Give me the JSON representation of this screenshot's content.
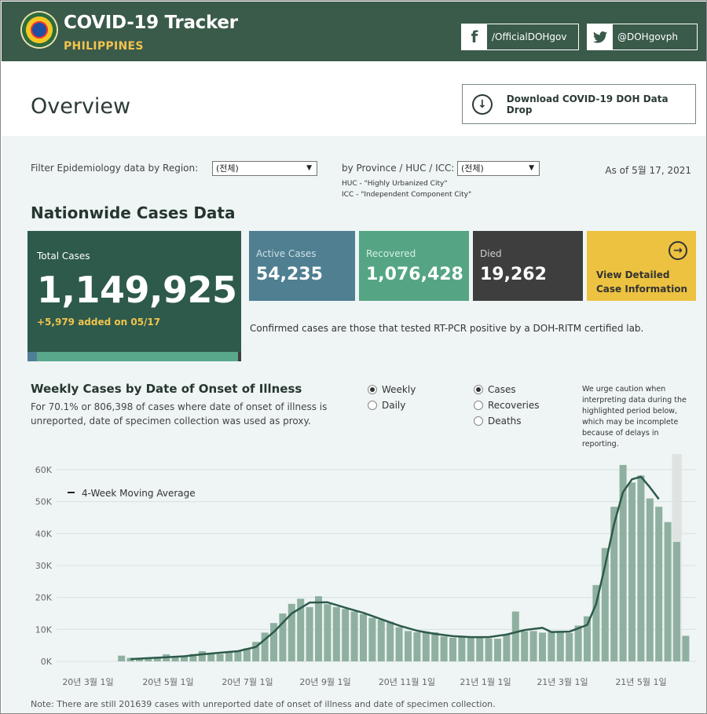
{
  "header": {
    "title": "COVID-19 Tracker",
    "subtitle": "PHILIPPINES",
    "facebook": "/OfficialDOHgov",
    "twitter": "@DOHgovph"
  },
  "overview": {
    "title": "Overview",
    "download_label": "Download COVID-19 DOH Data Drop"
  },
  "filters": {
    "region_label": "Filter Epidemiology data by Region:",
    "region_value": "(전체)",
    "province_label": "by Province / HUC / ICC:",
    "province_value": "(전체)",
    "huc_note": "HUC - \"Highly Urbanized City\"",
    "icc_note": "ICC - \"Independent Component City\"",
    "as_of": "As of 5월 17, 2021"
  },
  "nationwide": {
    "title": "Nationwide Cases Data",
    "total_label": "Total Cases",
    "total_value": "1,149,925",
    "added": "+5,979 added on 05/17",
    "active_label": "Active Cases",
    "active_value": "54,235",
    "recovered_label": "Recovered",
    "recovered_value": "1,076,428",
    "died_label": "Died",
    "died_value": "19,262",
    "view_label_1": "View Detailed",
    "view_label_2": "Case Information",
    "confirmed_note": "Confirmed cases are those that tested RT-PCR positive by a DOH-RITM certified lab."
  },
  "weekly": {
    "title": "Weekly Cases by Date of Onset of Illness",
    "desc": "For 70.1% or 806,398 of cases where date of onset of illness is unreported, date of specimen collection was used as proxy.",
    "radio_weekly": "Weekly",
    "radio_daily": "Daily",
    "radio_cases": "Cases",
    "radio_recoveries": "Recoveries",
    "radio_deaths": "Deaths",
    "caution": "We urge caution when interpreting data during the highlighted period below, which may be incomplete because of delays in reporting.",
    "bottom_note": "Note: There are still 201639 cases with unreported date of onset of illness and date of specimen collection."
  },
  "colors": {
    "header_bg": "#3a5a4a",
    "bar": "#8fb0a0",
    "line": "#2d5a4b",
    "highlight": "#dfe4e2"
  },
  "chart_data": {
    "type": "bar",
    "legend": "4-Week Moving Average",
    "ytick_labels": [
      "0K",
      "10K",
      "20K",
      "30K",
      "40K",
      "50K",
      "60K"
    ],
    "xtick_labels": [
      "20년 3월 1일",
      "20년 5월 1일",
      "20년 7월 1일",
      "20년 9월 1일",
      "20년 11월 1일",
      "21년 1월 1일",
      "21년 3월 1일",
      "21년 5월 1일"
    ],
    "ylim": [
      0,
      62000
    ],
    "grid": true,
    "bars": [
      {
        "index": 3,
        "value": 1800
      },
      {
        "index": 4,
        "value": 1100
      },
      {
        "index": 5,
        "value": 900
      },
      {
        "index": 6,
        "value": 1200
      },
      {
        "index": 7,
        "value": 1400
      },
      {
        "index": 8,
        "value": 2200
      },
      {
        "index": 9,
        "value": 1300
      },
      {
        "index": 10,
        "value": 1600
      },
      {
        "index": 11,
        "value": 2300
      },
      {
        "index": 12,
        "value": 3200
      },
      {
        "index": 13,
        "value": 2500
      },
      {
        "index": 14,
        "value": 2300
      },
      {
        "index": 15,
        "value": 2900
      },
      {
        "index": 16,
        "value": 3300
      },
      {
        "index": 17,
        "value": 4100
      },
      {
        "index": 18,
        "value": 6100
      },
      {
        "index": 19,
        "value": 9000
      },
      {
        "index": 20,
        "value": 12000
      },
      {
        "index": 21,
        "value": 15000
      },
      {
        "index": 22,
        "value": 18000
      },
      {
        "index": 23,
        "value": 19600
      },
      {
        "index": 24,
        "value": 17000
      },
      {
        "index": 25,
        "value": 20400
      },
      {
        "index": 26,
        "value": 17900
      },
      {
        "index": 27,
        "value": 17000
      },
      {
        "index": 28,
        "value": 16400
      },
      {
        "index": 29,
        "value": 15600
      },
      {
        "index": 30,
        "value": 14800
      },
      {
        "index": 31,
        "value": 13600
      },
      {
        "index": 32,
        "value": 13000
      },
      {
        "index": 33,
        "value": 12400
      },
      {
        "index": 34,
        "value": 10700
      },
      {
        "index": 35,
        "value": 9500
      },
      {
        "index": 36,
        "value": 9100
      },
      {
        "index": 37,
        "value": 9300
      },
      {
        "index": 38,
        "value": 9100
      },
      {
        "index": 39,
        "value": 7800
      },
      {
        "index": 40,
        "value": 7400
      },
      {
        "index": 41,
        "value": 8000
      },
      {
        "index": 42,
        "value": 7400
      },
      {
        "index": 43,
        "value": 7400
      },
      {
        "index": 44,
        "value": 7200
      },
      {
        "index": 45,
        "value": 7100
      },
      {
        "index": 46,
        "value": 8500
      },
      {
        "index": 47,
        "value": 15600
      },
      {
        "index": 48,
        "value": 9400
      },
      {
        "index": 49,
        "value": 9500
      },
      {
        "index": 50,
        "value": 9000
      },
      {
        "index": 51,
        "value": 9200
      },
      {
        "index": 52,
        "value": 9300
      },
      {
        "index": 53,
        "value": 8900
      },
      {
        "index": 54,
        "value": 11200
      },
      {
        "index": 55,
        "value": 14100
      },
      {
        "index": 56,
        "value": 23900
      },
      {
        "index": 57,
        "value": 35500
      },
      {
        "index": 58,
        "value": 48400
      },
      {
        "index": 59,
        "value": 61500
      },
      {
        "index": 60,
        "value": 56000
      },
      {
        "index": 61,
        "value": 58200
      },
      {
        "index": 62,
        "value": 51000
      },
      {
        "index": 63,
        "value": 48400
      },
      {
        "index": 64,
        "value": 43600
      },
      {
        "index": 65,
        "value": 37400
      },
      {
        "index": 66,
        "value": 8000
      }
    ],
    "moving_average": [
      {
        "index": 4,
        "value": 700
      },
      {
        "index": 6,
        "value": 1000
      },
      {
        "index": 8,
        "value": 1300
      },
      {
        "index": 10,
        "value": 1600
      },
      {
        "index": 12,
        "value": 2200
      },
      {
        "index": 14,
        "value": 2700
      },
      {
        "index": 16,
        "value": 3200
      },
      {
        "index": 18,
        "value": 4500
      },
      {
        "index": 20,
        "value": 9200
      },
      {
        "index": 22,
        "value": 15000
      },
      {
        "index": 24,
        "value": 18400
      },
      {
        "index": 26,
        "value": 18500
      },
      {
        "index": 28,
        "value": 16800
      },
      {
        "index": 30,
        "value": 15200
      },
      {
        "index": 32,
        "value": 13200
      },
      {
        "index": 34,
        "value": 11200
      },
      {
        "index": 36,
        "value": 9600
      },
      {
        "index": 38,
        "value": 8600
      },
      {
        "index": 40,
        "value": 7900
      },
      {
        "index": 42,
        "value": 7600
      },
      {
        "index": 44,
        "value": 7600
      },
      {
        "index": 46,
        "value": 8400
      },
      {
        "index": 48,
        "value": 9800
      },
      {
        "index": 50,
        "value": 10500
      },
      {
        "index": 51,
        "value": 9200
      },
      {
        "index": 53,
        "value": 9300
      },
      {
        "index": 55,
        "value": 11400
      },
      {
        "index": 56,
        "value": 18000
      },
      {
        "index": 57,
        "value": 30000
      },
      {
        "index": 58,
        "value": 43000
      },
      {
        "index": 59,
        "value": 53000
      },
      {
        "index": 60,
        "value": 57000
      },
      {
        "index": 61,
        "value": 57800
      },
      {
        "index": 62,
        "value": 54500
      },
      {
        "index": 63,
        "value": 50800
      }
    ],
    "highlight_bar": 65
  }
}
